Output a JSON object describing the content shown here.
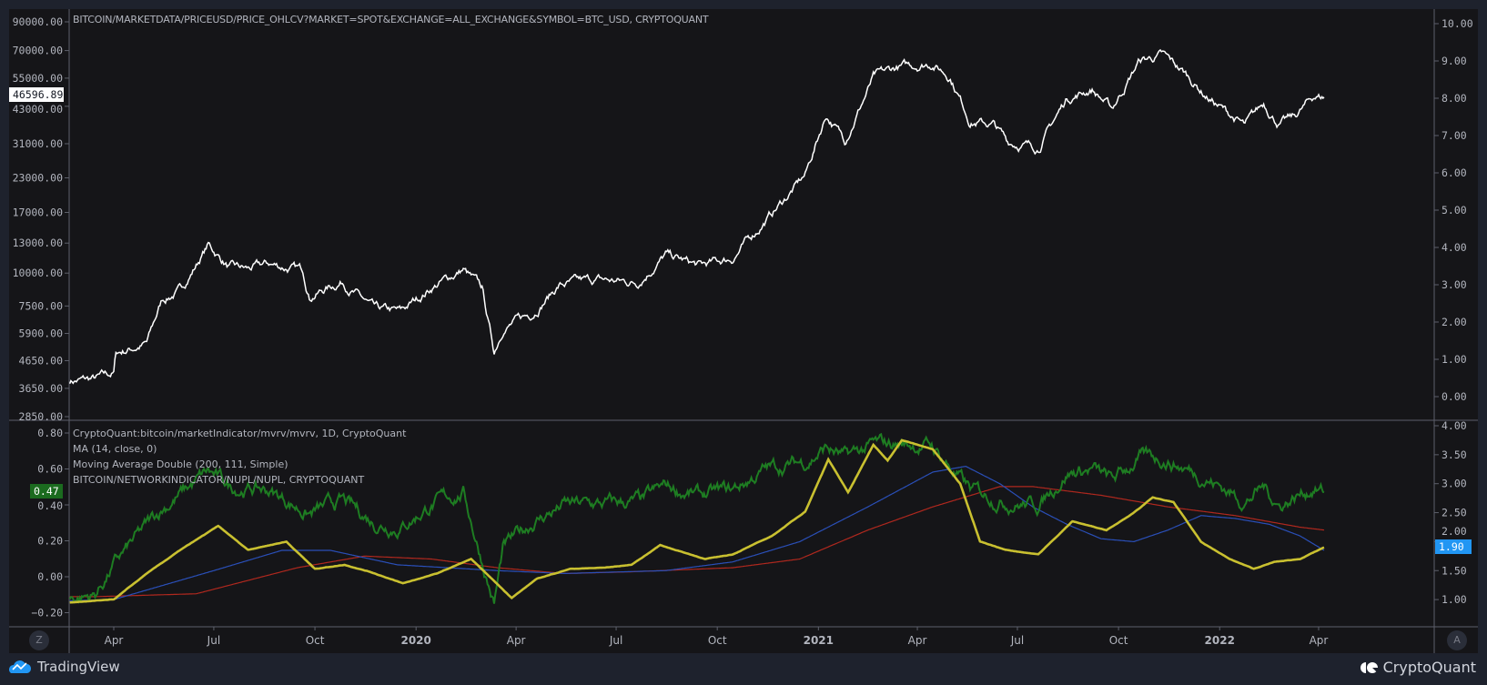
{
  "top_pane": {
    "title": "BITCOIN/MARKETDATA/PRICEUSD/PRICE_OHLCV?MARKET=SPOT&EXCHANGE=ALL_EXCHANGE&SYMBOL=BTC_USD, CRYPTOQUANT",
    "last_price_label": "46596.89",
    "left_ticks": [
      "90000.00",
      "70000.00",
      "55000.00",
      "43000.00",
      "31000.00",
      "23000.00",
      "17000.00",
      "13000.00",
      "10000.00",
      "7500.00",
      "5900.00",
      "4650.00",
      "3650.00",
      "2850.00"
    ],
    "right_ticks": [
      "10.00",
      "9.00",
      "8.00",
      "7.00",
      "6.00",
      "5.00",
      "4.00",
      "3.00",
      "2.00",
      "1.00",
      "0.00"
    ]
  },
  "bottom_pane": {
    "legend": [
      "CryptoQuant:bitcoin/marketIndicator/mvrv/mvrv, 1D, CryptoQuant",
      "MA (14, close, 0)",
      "Moving Average Double (200, 111, Simple)",
      "BITCOIN/NETWORKINDICATOR/NUPL/NUPL, CRYPTOQUANT"
    ],
    "nupl_last_label": "0.47",
    "mvrv_last_label": "1.90",
    "left_ticks": [
      "0.80",
      "0.60",
      "0.40",
      "0.20",
      "0.00",
      "−0.20"
    ],
    "right_ticks": [
      "4.00",
      "3.50",
      "3.00",
      "2.50",
      "2.00",
      "1.50",
      "1.00"
    ]
  },
  "time_axis": {
    "ticks": [
      {
        "label": "Apr",
        "date": "2019-04-01",
        "year": false
      },
      {
        "label": "Jul",
        "date": "2019-07-01",
        "year": false
      },
      {
        "label": "Oct",
        "date": "2019-10-01",
        "year": false
      },
      {
        "label": "2020",
        "date": "2020-01-01",
        "year": true
      },
      {
        "label": "Apr",
        "date": "2020-04-01",
        "year": false
      },
      {
        "label": "Jul",
        "date": "2020-07-01",
        "year": false
      },
      {
        "label": "Oct",
        "date": "2020-10-01",
        "year": false
      },
      {
        "label": "2021",
        "date": "2021-01-01",
        "year": true
      },
      {
        "label": "Apr",
        "date": "2021-04-01",
        "year": false
      },
      {
        "label": "Jul",
        "date": "2021-07-01",
        "year": false
      },
      {
        "label": "Oct",
        "date": "2021-10-01",
        "year": false
      },
      {
        "label": "2022",
        "date": "2022-01-01",
        "year": true
      },
      {
        "label": "Apr",
        "date": "2022-04-01",
        "year": false
      }
    ]
  },
  "buttons": {
    "left_scale": "Z",
    "right_scale": "A"
  },
  "footer": {
    "left_logo": "TradingView",
    "right_logo": "CryptoQuant"
  },
  "colors": {
    "background": "#151518",
    "frame": "#1e222d",
    "price": "#ffffff",
    "nupl": "#1e7d22",
    "mvrv_ma14": "#c9c030",
    "ma_fast": "#2a4fb8",
    "ma_slow": "#b0281e",
    "mvrv_badge": "#2196f3",
    "nupl_badge": "#1b6b1f"
  },
  "chart_data": [
    {
      "type": "line",
      "pane": "top",
      "yscale": "log",
      "ylim": [
        2850,
        90000
      ],
      "series": [
        {
          "x": [
            "2019-02-20",
            "2019-03-15",
            "2019-04-01",
            "2019-04-03",
            "2019-05-01",
            "2019-05-15",
            "2019-06-01",
            "2019-06-26",
            "2019-07-15",
            "2019-08-01",
            "2019-08-20",
            "2019-09-20",
            "2019-09-26",
            "2019-10-26",
            "2019-11-25",
            "2019-12-18",
            "2020-01-15",
            "2020-02-13",
            "2020-03-01",
            "2020-03-12",
            "2020-03-20",
            "2020-04-15",
            "2020-05-10",
            "2020-06-15",
            "2020-07-20",
            "2020-08-15",
            "2020-09-15",
            "2020-10-15",
            "2020-11-15",
            "2020-12-01",
            "2020-12-20",
            "2021-01-08",
            "2021-01-25",
            "2021-02-20",
            "2021-03-13",
            "2021-04-14",
            "2021-05-01",
            "2021-05-19",
            "2021-06-10",
            "2021-06-22",
            "2021-07-20",
            "2021-08-15",
            "2021-09-07",
            "2021-09-25",
            "2021-10-20",
            "2021-11-10",
            "2021-12-01",
            "2021-12-20",
            "2022-01-24",
            "2022-02-10",
            "2022-02-24",
            "2022-03-10",
            "2022-03-28",
            "2022-04-06"
          ],
          "y": [
            3900,
            3950,
            4150,
            4950,
            5400,
            7900,
            8600,
            12800,
            10500,
            10300,
            10800,
            10200,
            8200,
            9300,
            7200,
            7100,
            8800,
            10300,
            8700,
            5000,
            6200,
            7000,
            9000,
            9400,
            9200,
            11700,
            10600,
            11400,
            16000,
            19000,
            23500,
            40000,
            32000,
            55000,
            60000,
            63000,
            56000,
            38000,
            36500,
            31500,
            30000,
            46000,
            50000,
            42000,
            64000,
            67000,
            57000,
            47000,
            36000,
            44000,
            37000,
            39000,
            47000,
            46596.89
          ]
        }
      ]
    },
    {
      "type": "line",
      "pane": "bottom",
      "left_axis": "NUPL",
      "right_axis": "MVRV",
      "ylim_left": [
        -0.2,
        0.8
      ],
      "ylim_right": [
        1.0,
        4.0
      ],
      "series": [
        {
          "axis": "left",
          "x": [
            "2019-02-20",
            "2019-03-15",
            "2019-04-03",
            "2019-05-15",
            "2019-06-26",
            "2019-07-15",
            "2019-08-20",
            "2019-09-26",
            "2019-10-26",
            "2019-11-25",
            "2019-12-18",
            "2020-01-15",
            "2020-02-13",
            "2020-03-12",
            "2020-03-20",
            "2020-04-15",
            "2020-05-15",
            "2020-06-15",
            "2020-07-25",
            "2020-08-15",
            "2020-09-15",
            "2020-10-15",
            "2020-11-15",
            "2020-12-20",
            "2021-01-08",
            "2021-01-25",
            "2021-02-20",
            "2021-03-13",
            "2021-04-14",
            "2021-05-19",
            "2021-06-22",
            "2021-07-20",
            "2021-08-15",
            "2021-09-07",
            "2021-09-25",
            "2021-10-20",
            "2021-11-10",
            "2021-12-20",
            "2022-01-24",
            "2022-02-10",
            "2022-02-24",
            "2022-03-28",
            "2022-04-06"
          ],
          "y": [
            -0.12,
            -0.1,
            0.08,
            0.38,
            0.58,
            0.5,
            0.48,
            0.35,
            0.42,
            0.3,
            0.28,
            0.4,
            0.47,
            -0.15,
            0.15,
            0.3,
            0.4,
            0.4,
            0.42,
            0.5,
            0.45,
            0.48,
            0.6,
            0.64,
            0.72,
            0.66,
            0.73,
            0.74,
            0.73,
            0.48,
            0.42,
            0.4,
            0.58,
            0.6,
            0.53,
            0.66,
            0.66,
            0.55,
            0.42,
            0.5,
            0.4,
            0.5,
            0.47
          ]
        },
        {
          "axis": "right",
          "x": [
            "2019-02-20",
            "2019-04-01",
            "2019-05-01",
            "2019-06-01",
            "2019-07-05",
            "2019-08-01",
            "2019-09-05",
            "2019-10-01",
            "2019-10-28",
            "2019-11-20",
            "2019-12-20",
            "2020-01-20",
            "2020-02-20",
            "2020-03-28",
            "2020-04-20",
            "2020-05-20",
            "2020-06-20",
            "2020-07-15",
            "2020-08-10",
            "2020-09-20",
            "2020-10-15",
            "2020-11-20",
            "2020-12-20",
            "2021-01-10",
            "2021-01-28",
            "2021-02-20",
            "2021-03-05",
            "2021-03-18",
            "2021-04-15",
            "2021-05-10",
            "2021-05-28",
            "2021-06-20",
            "2021-07-20",
            "2021-08-20",
            "2021-09-20",
            "2021-10-15",
            "2021-11-01",
            "2021-11-20",
            "2021-12-15",
            "2022-01-10",
            "2022-02-01",
            "2022-02-20",
            "2022-03-15",
            "2022-04-06"
          ],
          "y": [
            0.95,
            1.0,
            1.45,
            1.86,
            2.27,
            1.86,
            2.0,
            1.53,
            1.6,
            1.48,
            1.28,
            1.45,
            1.7,
            1.03,
            1.36,
            1.53,
            1.55,
            1.6,
            1.94,
            1.7,
            1.78,
            2.1,
            2.52,
            3.42,
            2.85,
            3.67,
            3.4,
            3.75,
            3.6,
            3.0,
            2.0,
            1.86,
            1.78,
            2.35,
            2.2,
            2.5,
            2.76,
            2.68,
            2.0,
            1.7,
            1.53,
            1.65,
            1.7,
            1.9
          ]
        },
        {
          "axis": "right",
          "x": [
            "2019-02-20",
            "2019-04-01",
            "2019-07-01",
            "2019-09-01",
            "2019-10-15",
            "2019-12-15",
            "2020-03-15",
            "2020-05-15",
            "2020-08-15",
            "2020-10-15",
            "2020-12-15",
            "2021-02-15",
            "2021-04-15",
            "2021-05-15",
            "2021-06-15",
            "2021-07-15",
            "2021-08-15",
            "2021-09-15",
            "2021-10-15",
            "2021-11-15",
            "2021-12-15",
            "2022-01-15",
            "2022-02-15",
            "2022-03-15",
            "2022-04-06"
          ],
          "y": [
            0.98,
            1.0,
            1.5,
            1.85,
            1.85,
            1.6,
            1.5,
            1.45,
            1.5,
            1.65,
            2.0,
            2.6,
            3.2,
            3.3,
            3.0,
            2.6,
            2.3,
            2.05,
            2.0,
            2.2,
            2.45,
            2.4,
            2.3,
            2.1,
            1.85
          ]
        },
        {
          "axis": "right",
          "x": [
            "2019-02-20",
            "2019-03-15",
            "2019-06-15",
            "2019-09-15",
            "2019-11-15",
            "2020-01-15",
            "2020-03-15",
            "2020-05-15",
            "2020-07-15",
            "2020-10-15",
            "2020-12-15",
            "2021-02-15",
            "2021-04-15",
            "2021-06-15",
            "2021-07-15",
            "2021-09-15",
            "2021-11-15",
            "2022-01-15",
            "2022-03-15",
            "2022-04-06"
          ],
          "y": [
            1.05,
            1.05,
            1.1,
            1.55,
            1.75,
            1.7,
            1.55,
            1.45,
            1.48,
            1.55,
            1.7,
            2.2,
            2.6,
            2.95,
            2.95,
            2.8,
            2.6,
            2.45,
            2.25,
            2.2
          ]
        }
      ]
    }
  ]
}
